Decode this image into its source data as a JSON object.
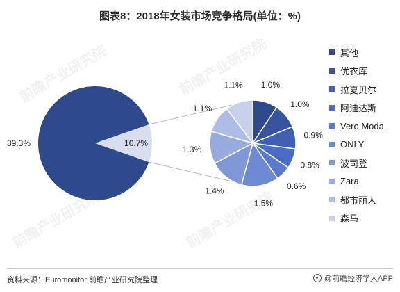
{
  "title": "图表8：2018年女装市场竞争格局(单位：%)",
  "source": "资料来源：Euromonitor 前瞻产业研究院整理",
  "brand": "@前瞻经济学人APP",
  "watermark": "前瞻产业研究院",
  "colors": {
    "main": "#2e4a8c",
    "other": "#d9ddef",
    "connector": "#b8b8b8"
  },
  "chart_data": [
    {
      "type": "pie",
      "slices": [
        {
          "label": "89.3%",
          "value": 89.3
        },
        {
          "label": "10.7%",
          "value": 10.7
        }
      ]
    },
    {
      "type": "pie",
      "series": [
        {
          "name": "其他",
          "value": 1.0,
          "label": "1.0%",
          "color": "#2e4a8c"
        },
        {
          "name": "优衣库",
          "value": 1.0,
          "label": "1.0%",
          "color": "#37559e"
        },
        {
          "name": "拉夏贝尔",
          "value": 0.9,
          "label": "0.9%",
          "color": "#3f60b4"
        },
        {
          "name": "阿迪达斯",
          "value": 0.8,
          "label": "0.8%",
          "color": "#4a6cc4"
        },
        {
          "name": "Vero Moda",
          "value": 0.6,
          "label": "0.6%",
          "color": "#5a7bcd"
        },
        {
          "name": "ONLY",
          "value": 1.5,
          "label": "1.5%",
          "color": "#6d8ad3"
        },
        {
          "name": "波司登",
          "value": 1.4,
          "label": "1.4%",
          "color": "#8198d8"
        },
        {
          "name": "Zara",
          "value": 1.3,
          "label": "1.3%",
          "color": "#97abdf"
        },
        {
          "name": "都市丽人",
          "value": 1.1,
          "label": "1.1%",
          "color": "#aebde6"
        },
        {
          "name": "森马",
          "value": 1.1,
          "label": "1.1%",
          "color": "#c7d1ee"
        }
      ],
      "legend_position": "right"
    }
  ]
}
